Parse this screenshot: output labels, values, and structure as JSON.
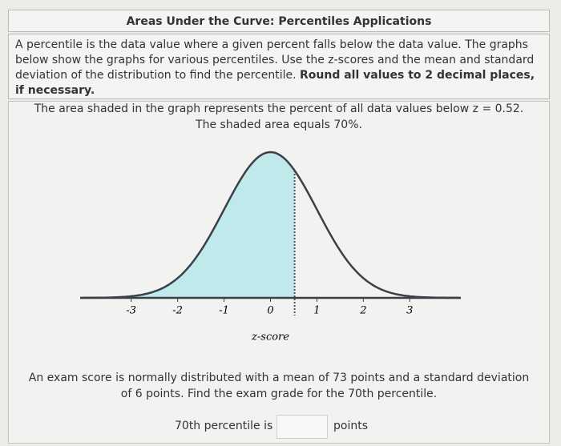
{
  "header": {
    "title": "Areas Under the Curve: Percentiles Applications"
  },
  "instructions": {
    "text": "A percentile is the data value where a given percent falls below the data value. The graphs below show the graphs for various percentiles. Use the z-scores and the mean and standard deviation of the distribution to find the percentile.",
    "emphasis": "Round all values to 2 decimal places, if necessary."
  },
  "description": [
    "The area shaded in the graph represents the percent of all data values below z = 0.52.",
    "The shaded area equals 70%."
  ],
  "graph": {
    "xlim": [
      -4.1,
      4.1
    ],
    "xticks": [
      -3,
      -2,
      -1,
      0,
      1,
      2,
      3
    ],
    "shaded_below": 0.52,
    "xlabel": "z-score"
  },
  "problem": [
    "An exam score is normally distributed with a mean of 73 points and a standard deviation",
    "of 6 points. Find the exam grade for the 70th percentile."
  ],
  "answer": {
    "label": "70th percentile is",
    "unit": "points"
  }
}
